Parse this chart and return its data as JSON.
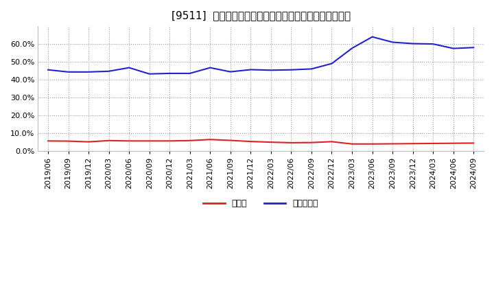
{
  "title": "[9511]  現頲金、有利子負債の総資産に対する比率の推移",
  "dates": [
    "2019/06",
    "2019/09",
    "2019/12",
    "2020/03",
    "2020/06",
    "2020/09",
    "2020/12",
    "2021/03",
    "2021/06",
    "2021/09",
    "2021/12",
    "2022/03",
    "2022/06",
    "2022/09",
    "2022/12",
    "2023/03",
    "2023/06",
    "2023/09",
    "2023/12",
    "2024/03",
    "2024/06",
    "2024/09"
  ],
  "cash": [
    0.056,
    0.055,
    0.051,
    0.058,
    0.056,
    0.056,
    0.056,
    0.058,
    0.064,
    0.059,
    0.053,
    0.049,
    0.046,
    0.047,
    0.052,
    0.039,
    0.039,
    0.04,
    0.041,
    0.042,
    0.043,
    0.044
  ],
  "debt": [
    0.455,
    0.443,
    0.443,
    0.447,
    0.467,
    0.432,
    0.435,
    0.435,
    0.467,
    0.444,
    0.456,
    0.453,
    0.455,
    0.46,
    0.49,
    0.576,
    0.64,
    0.61,
    0.602,
    0.6,
    0.575,
    0.58
  ],
  "cash_color": "#dd2222",
  "debt_color": "#2222cc",
  "background_color": "#ffffff",
  "plot_bg_color": "#ffffff",
  "grid_color": "#999999",
  "ylim": [
    0.0,
    0.7
  ],
  "yticks": [
    0.0,
    0.1,
    0.2,
    0.3,
    0.4,
    0.5,
    0.6
  ],
  "legend_cash": "現頲金",
  "legend_debt": "有利子負債",
  "title_fontsize": 11,
  "tick_fontsize": 8,
  "legend_fontsize": 9
}
